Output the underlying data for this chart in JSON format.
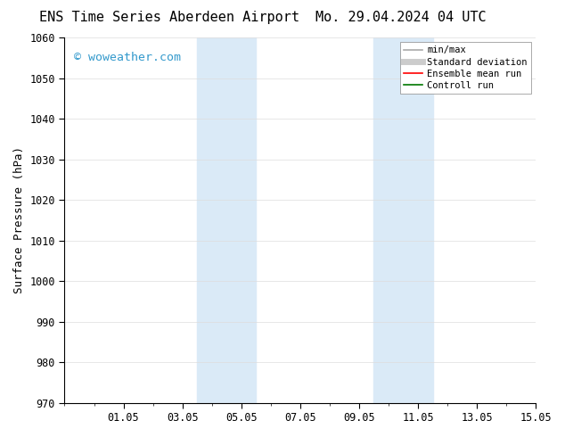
{
  "title_left": "ENS Time Series Aberdeen Airport",
  "title_right": "Mo. 29.04.2024 04 UTC",
  "ylabel": "Surface Pressure (hPa)",
  "ylim": [
    970,
    1060
  ],
  "yticks": [
    970,
    980,
    990,
    1000,
    1010,
    1020,
    1030,
    1040,
    1050,
    1060
  ],
  "xtick_labels": [
    "01.05",
    "03.05",
    "05.05",
    "07.05",
    "09.05",
    "11.05",
    "13.05",
    "15.05"
  ],
  "xtick_positions": [
    2,
    4,
    6,
    8,
    10,
    12,
    14,
    16
  ],
  "x_minor_positions": [
    1,
    2,
    3,
    4,
    5,
    6,
    7,
    8,
    9,
    10,
    11,
    12,
    13,
    14,
    15,
    16
  ],
  "shaded_bands": [
    {
      "x_start": 4.5,
      "x_end": 6.5,
      "color": "#daeaf7"
    },
    {
      "x_start": 10.5,
      "x_end": 12.5,
      "color": "#daeaf7"
    }
  ],
  "watermark": "© woweather.com",
  "watermark_color": "#3399cc",
  "legend_entries": [
    {
      "label": "min/max",
      "color": "#aaaaaa",
      "lw": 1.2
    },
    {
      "label": "Standard deviation",
      "color": "#cccccc",
      "lw": 5
    },
    {
      "label": "Ensemble mean run",
      "color": "#ff0000",
      "lw": 1.2
    },
    {
      "label": "Controll run",
      "color": "#007700",
      "lw": 1.2
    }
  ],
  "bg_color": "#ffffff",
  "grid_color": "#dddddd",
  "title_fontsize": 11,
  "axis_fontsize": 9,
  "tick_fontsize": 8.5,
  "legend_fontsize": 7.5
}
